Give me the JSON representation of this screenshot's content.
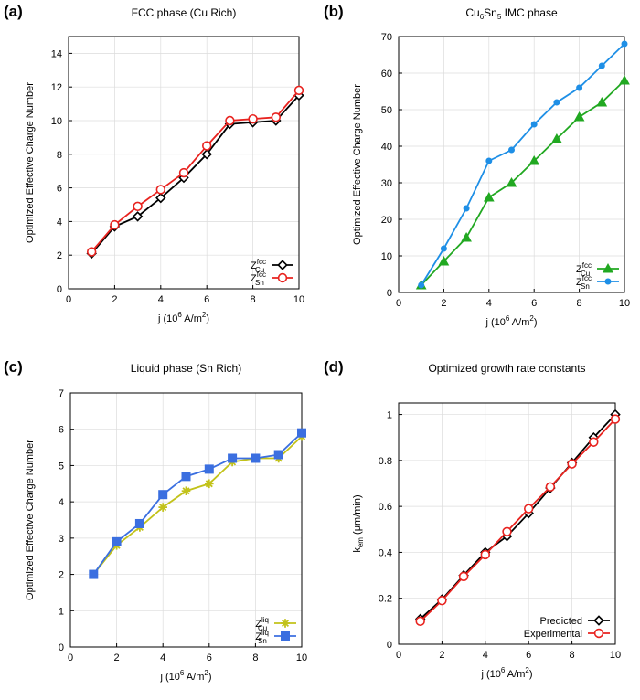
{
  "chart_data": [
    {
      "panel_label": "(a)",
      "type": "line",
      "title": "FCC phase (Cu Rich)",
      "xlabel": "j (10⁶  A/m²)",
      "ylabel": "Optimized Effective Charge Number",
      "xlim": [
        0,
        10
      ],
      "ylim": [
        0,
        15
      ],
      "xticks": [
        0,
        2,
        4,
        6,
        8,
        10
      ],
      "yticks": [
        0,
        2,
        4,
        6,
        8,
        10,
        12,
        14
      ],
      "grid": true,
      "legend_position": "bottom-right",
      "x": [
        1,
        2,
        3,
        4,
        5,
        6,
        7,
        8,
        9,
        10
      ],
      "series": [
        {
          "legend": {
            "base": "Z",
            "sup": "fcc",
            "sub": "Cu"
          },
          "color": "#000000",
          "marker": "diamond",
          "values": [
            2.1,
            3.7,
            4.3,
            5.4,
            6.6,
            8.0,
            9.8,
            9.9,
            10.0,
            11.5
          ]
        },
        {
          "legend": {
            "base": "Z",
            "sup": "fcc",
            "sub": "Sn"
          },
          "color": "#e8231f",
          "marker": "circle",
          "values": [
            2.2,
            3.8,
            4.9,
            5.9,
            6.9,
            8.5,
            10.0,
            10.1,
            10.2,
            11.8
          ]
        }
      ]
    },
    {
      "panel_label": "(b)",
      "type": "line",
      "title": "Cu₆Sn₅ IMC phase",
      "xlabel": "j (10⁶  A/m²)",
      "ylabel": "Optimized Effective Charge Number",
      "xlim": [
        0,
        10
      ],
      "ylim": [
        0,
        70
      ],
      "xticks": [
        0,
        2,
        4,
        6,
        8,
        10
      ],
      "yticks": [
        0,
        10,
        20,
        30,
        40,
        50,
        60,
        70
      ],
      "grid": true,
      "legend_position": "bottom-right",
      "x": [
        1,
        2,
        3,
        4,
        5,
        6,
        7,
        8,
        9,
        10
      ],
      "series": [
        {
          "legend": {
            "base": "Z",
            "sup": "fcc",
            "sub": "Cu"
          },
          "color": "#21a821",
          "marker": "triangle",
          "values": [
            2,
            8.5,
            15,
            26,
            30,
            36,
            42,
            48,
            52,
            58
          ]
        },
        {
          "legend": {
            "base": "Z",
            "sup": "fcc",
            "sub": "Sn"
          },
          "color": "#1e8fe6",
          "marker": "dot",
          "values": [
            2,
            12,
            23,
            36,
            39,
            46,
            52,
            56,
            62,
            68
          ]
        }
      ]
    },
    {
      "panel_label": "(c)",
      "type": "line",
      "title": "Liquid phase (Sn Rich)",
      "xlabel": "j (10⁶  A/m²)",
      "ylabel": "Optimized Effective Charge Number",
      "xlim": [
        0,
        10
      ],
      "ylim": [
        0,
        7
      ],
      "xticks": [
        0,
        2,
        4,
        6,
        8,
        10
      ],
      "yticks": [
        0,
        1,
        2,
        3,
        4,
        5,
        6,
        7
      ],
      "grid": true,
      "legend_position": "bottom-right",
      "x": [
        1,
        2,
        3,
        4,
        5,
        6,
        7,
        8,
        9,
        10
      ],
      "series": [
        {
          "legend": {
            "base": "Z",
            "sup": "liq",
            "sub": "Cu"
          },
          "color": "#c2c21a",
          "marker": "star",
          "values": [
            2.0,
            2.8,
            3.3,
            3.85,
            4.3,
            4.5,
            5.1,
            5.2,
            5.2,
            5.8
          ]
        },
        {
          "legend": {
            "base": "Z",
            "sup": "liq",
            "sub": "Sn"
          },
          "color": "#3b6fe0",
          "marker": "square",
          "values": [
            2.0,
            2.9,
            3.4,
            4.2,
            4.7,
            4.9,
            5.2,
            5.2,
            5.3,
            5.9
          ]
        }
      ]
    },
    {
      "panel_label": "(d)",
      "type": "line",
      "title": "Optimized growth rate constants",
      "xlabel": "j (10⁶  A/m²)",
      "ylabel": "k_em   (μm/min)",
      "xlim": [
        0,
        10
      ],
      "ylim": [
        0,
        1.05
      ],
      "xticks": [
        0,
        2,
        4,
        6,
        8,
        10
      ],
      "yticks": [
        0,
        0.2,
        0.4,
        0.6,
        0.8,
        1
      ],
      "grid": true,
      "legend_position": "bottom-right",
      "x": [
        1,
        2,
        3,
        4,
        5,
        6,
        7,
        8,
        9,
        10
      ],
      "series": [
        {
          "legend": {
            "base": "Predicted"
          },
          "color": "#000000",
          "marker": "diamond",
          "values": [
            0.11,
            0.195,
            0.3,
            0.4,
            0.47,
            0.57,
            0.68,
            0.79,
            0.9,
            1.0
          ]
        },
        {
          "legend": {
            "base": "Experimental"
          },
          "color": "#e8231f",
          "marker": "circle",
          "values": [
            0.1,
            0.19,
            0.295,
            0.39,
            0.49,
            0.59,
            0.685,
            0.785,
            0.88,
            0.98
          ]
        }
      ]
    }
  ]
}
